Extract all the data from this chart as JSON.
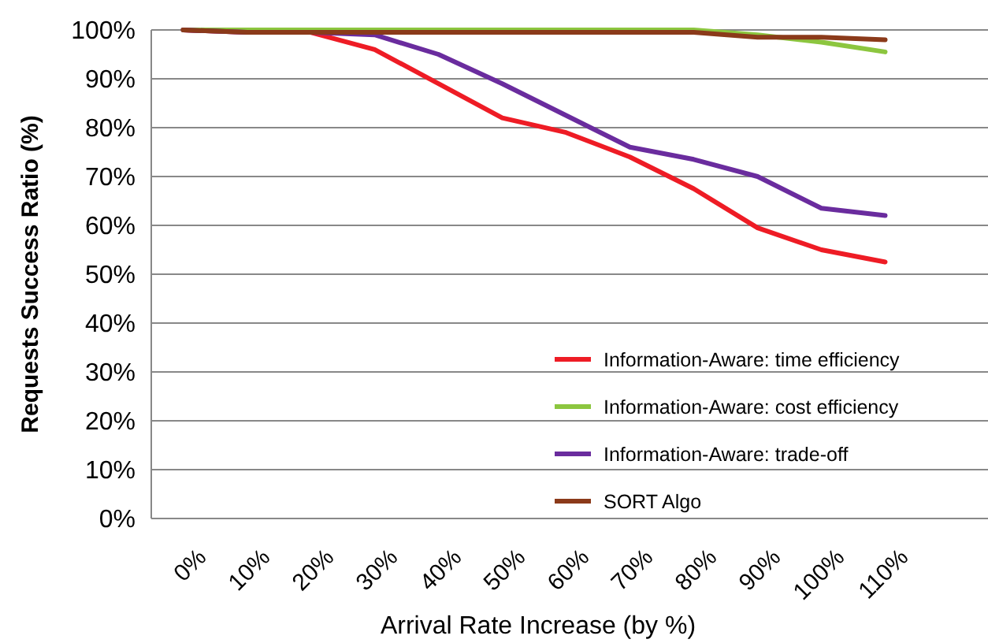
{
  "chart_data": {
    "type": "line",
    "xlabel": "Arrival Rate Increase (by %)",
    "ylabel": "Requests Success Ratio (%)",
    "categories": [
      "0%",
      "10%",
      "20%",
      "30%",
      "40%",
      "50%",
      "60%",
      "70%",
      "80%",
      "90%",
      "100%",
      "110%"
    ],
    "series": [
      {
        "name": "Information-Aware: time efficiency",
        "color": "#ee1c25",
        "values": [
          100,
          99.5,
          99.5,
          96,
          89,
          82,
          79,
          74,
          67.5,
          59.5,
          55,
          52.5
        ]
      },
      {
        "name": "Information-Aware: cost efficiency",
        "color": "#8cc63f",
        "values": [
          100,
          100,
          100,
          100,
          100,
          100,
          100,
          100,
          100,
          99,
          97.5,
          95.5
        ]
      },
      {
        "name": "Information-Aware: trade-off",
        "color": "#6a2c9e",
        "values": [
          100,
          99.5,
          99.5,
          99,
          95,
          89,
          82.5,
          76,
          73.5,
          70,
          63.5,
          62
        ]
      },
      {
        "name": "SORT Algo",
        "color": "#8b3a1a",
        "values": [
          100,
          99.5,
          99.5,
          99.5,
          99.5,
          99.5,
          99.5,
          99.5,
          99.5,
          98.5,
          98.5,
          98
        ]
      }
    ],
    "ylim": [
      0,
      100
    ],
    "yticks": [
      {
        "value": 0,
        "label": "0%"
      },
      {
        "value": 10,
        "label": "10%"
      },
      {
        "value": 20,
        "label": "20%"
      },
      {
        "value": 30,
        "label": "30%"
      },
      {
        "value": 40,
        "label": "40%"
      },
      {
        "value": 50,
        "label": "50%"
      },
      {
        "value": 60,
        "label": "60%"
      },
      {
        "value": 70,
        "label": "70%"
      },
      {
        "value": 80,
        "label": "80%"
      },
      {
        "value": 90,
        "label": "90%"
      },
      {
        "value": 100,
        "label": "100%"
      }
    ],
    "grid": "y",
    "legend": "bottom right",
    "marker": "none",
    "line_style": "solid"
  }
}
